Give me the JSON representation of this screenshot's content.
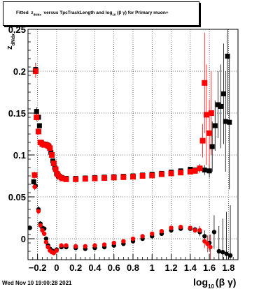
{
  "header": {
    "title_prefix": "Fitted",
    "title_z": "z",
    "title_z_sub": "dNdx",
    "title_mid": "versus TpcTrackLength and log",
    "title_log_sub": "10",
    "title_suffix": "(β γ) for Primary muon+"
  },
  "footer": {
    "datestamp": "Wed Nov 10 19:00:28 2021"
  },
  "axis_labels": {
    "x_main": "log",
    "x_sub": "10",
    "x_suffix": "(β γ)",
    "y_main": "z",
    "y_sub": "dNdx"
  },
  "colors": {
    "series_black": "#000000",
    "series_red": "#ff0000",
    "frame": "#000000"
  },
  "chart_data": {
    "type": "scatter",
    "title": "Fitted z dNdx versus TpcTrackLength and log10 (β γ) for Primary muon+",
    "xlabel": "log10 (β γ)",
    "ylabel": "z dNdx",
    "xlim": [
      -0.3,
      1.9
    ],
    "ylim": [
      -0.025,
      0.25
    ],
    "x_ticks": [
      -0.2,
      0,
      0.2,
      0.4,
      0.6,
      0.8,
      1,
      1.2,
      1.4,
      1.6,
      1.8
    ],
    "x_tick_labels": [
      "−0.2",
      "0",
      "0.2",
      "0.4",
      "0.6",
      "0.8",
      "1",
      "1.2",
      "1.4",
      "1.6",
      "1.8"
    ],
    "y_ticks": [
      0,
      0.05,
      0.1,
      0.15,
      0.2,
      0.25
    ],
    "y_tick_labels": [
      "0",
      "0.05",
      "0.1",
      "0.15",
      "0.2",
      "0.25"
    ],
    "grid": true,
    "legend": "none",
    "series": [
      {
        "color": "#000000",
        "role": "upper",
        "points": [
          [
            -0.24,
            0.068,
            0.004
          ],
          [
            -0.22,
            0.202,
            0.008
          ],
          [
            -0.21,
            0.152,
            0.005
          ],
          [
            -0.19,
            0.145,
            0.004
          ],
          [
            -0.18,
            0.135,
            0.003
          ],
          [
            -0.16,
            0.115,
            0.002
          ],
          [
            -0.14,
            0.113,
            0.002
          ],
          [
            -0.12,
            0.113,
            0.002
          ],
          [
            -0.1,
            0.112,
            0.002
          ],
          [
            -0.08,
            0.11,
            0.002
          ],
          [
            -0.06,
            0.103,
            0.002
          ],
          [
            -0.04,
            0.093,
            0.002
          ],
          [
            -0.02,
            0.085,
            0.002
          ],
          [
            0.0,
            0.078,
            0.002
          ],
          [
            0.02,
            0.075,
            0.002
          ],
          [
            0.05,
            0.073,
            0.001
          ],
          [
            0.1,
            0.072,
            0.001
          ],
          [
            0.2,
            0.072,
            0.001
          ],
          [
            0.3,
            0.0725,
            0.001
          ],
          [
            0.4,
            0.073,
            0.001
          ],
          [
            0.5,
            0.0735,
            0.001
          ],
          [
            0.6,
            0.074,
            0.001
          ],
          [
            0.7,
            0.0745,
            0.001
          ],
          [
            0.8,
            0.075,
            0.001
          ],
          [
            0.9,
            0.076,
            0.001
          ],
          [
            1.0,
            0.077,
            0.001
          ],
          [
            1.1,
            0.078,
            0.001
          ],
          [
            1.2,
            0.0795,
            0.001
          ],
          [
            1.3,
            0.081,
            0.001
          ],
          [
            1.4,
            0.083,
            0.002
          ],
          [
            1.45,
            0.082,
            0.003
          ],
          [
            1.5,
            0.084,
            0.005
          ],
          [
            1.55,
            0.082,
            0.006
          ],
          [
            1.6,
            0.081,
            0.008
          ],
          [
            1.63,
            0.11,
            0.03
          ],
          [
            1.66,
            0.135,
            0.03
          ],
          [
            1.69,
            0.16,
            0.04
          ],
          [
            1.72,
            0.158,
            0.05
          ],
          [
            1.75,
            0.173,
            0.06
          ],
          [
            1.77,
            0.14,
            0.06
          ],
          [
            1.79,
            0.218,
            0.07
          ],
          [
            1.81,
            0.139,
            0.08
          ]
        ]
      },
      {
        "color": "#ff0000",
        "role": "upper",
        "points": [
          [
            -0.23,
            0.076,
            0.004
          ],
          [
            -0.22,
            0.2,
            0.008
          ],
          [
            -0.21,
            0.145,
            0.005
          ],
          [
            -0.19,
            0.128,
            0.004
          ],
          [
            -0.17,
            0.115,
            0.003
          ],
          [
            -0.15,
            0.113,
            0.002
          ],
          [
            -0.13,
            0.112,
            0.002
          ],
          [
            -0.11,
            0.112,
            0.002
          ],
          [
            -0.09,
            0.111,
            0.002
          ],
          [
            -0.07,
            0.108,
            0.002
          ],
          [
            -0.05,
            0.1,
            0.002
          ],
          [
            -0.03,
            0.09,
            0.002
          ],
          [
            -0.01,
            0.083,
            0.002
          ],
          [
            0.01,
            0.077,
            0.002
          ],
          [
            0.03,
            0.074,
            0.001
          ],
          [
            0.06,
            0.072,
            0.001
          ],
          [
            0.1,
            0.071,
            0.001
          ],
          [
            0.2,
            0.071,
            0.001
          ],
          [
            0.3,
            0.0715,
            0.001
          ],
          [
            0.4,
            0.072,
            0.001
          ],
          [
            0.5,
            0.0725,
            0.001
          ],
          [
            0.6,
            0.073,
            0.001
          ],
          [
            0.7,
            0.0735,
            0.001
          ],
          [
            0.8,
            0.074,
            0.001
          ],
          [
            0.9,
            0.075,
            0.001
          ],
          [
            1.0,
            0.0755,
            0.001
          ],
          [
            1.1,
            0.077,
            0.001
          ],
          [
            1.2,
            0.078,
            0.001
          ],
          [
            1.3,
            0.079,
            0.001
          ],
          [
            1.4,
            0.08,
            0.002
          ],
          [
            1.45,
            0.081,
            0.003
          ],
          [
            1.5,
            0.084,
            0.004
          ],
          [
            1.53,
            0.117,
            0.02
          ],
          [
            1.55,
            0.186,
            0.06
          ],
          [
            1.57,
            0.148,
            0.06
          ],
          [
            1.6,
            0.126,
            0.04
          ],
          [
            1.62,
            0.15,
            0.05
          ]
        ]
      },
      {
        "color": "#000000",
        "role": "lower",
        "points": [
          [
            -0.28,
            0.013,
            0.003
          ],
          [
            -0.22,
            0.063,
            0.004
          ],
          [
            -0.19,
            0.035,
            0.004
          ],
          [
            -0.17,
            0.018,
            0.003
          ],
          [
            -0.15,
            0.013,
            0.003
          ],
          [
            -0.13,
            0.012,
            0.002
          ],
          [
            -0.11,
            0.0,
            0.002
          ],
          [
            -0.09,
            -0.008,
            0.002
          ],
          [
            -0.07,
            -0.012,
            0.002
          ],
          [
            -0.05,
            -0.014,
            0.002
          ],
          [
            -0.03,
            -0.015,
            0.002
          ],
          [
            0.0,
            -0.013,
            0.001
          ],
          [
            0.05,
            -0.01,
            0.001
          ],
          [
            0.1,
            -0.01,
            0.001
          ],
          [
            0.2,
            -0.011,
            0.001
          ],
          [
            0.3,
            -0.012,
            0.001
          ],
          [
            0.4,
            -0.011,
            0.001
          ],
          [
            0.5,
            -0.01,
            0.001
          ],
          [
            0.6,
            -0.008,
            0.001
          ],
          [
            0.7,
            -0.006,
            0.001
          ],
          [
            0.8,
            -0.003,
            0.001
          ],
          [
            0.9,
            0.0,
            0.001
          ],
          [
            1.0,
            0.003,
            0.001
          ],
          [
            1.1,
            0.006,
            0.001
          ],
          [
            1.2,
            0.01,
            0.001
          ],
          [
            1.3,
            0.012,
            0.001
          ],
          [
            1.4,
            0.012,
            0.002
          ],
          [
            1.45,
            0.011,
            0.003
          ],
          [
            1.5,
            0.008,
            0.005
          ],
          [
            1.55,
            0.003,
            0.007
          ],
          [
            1.6,
            -0.005,
            0.01
          ],
          [
            1.65,
            0.008,
            0.02
          ],
          [
            1.7,
            -0.015,
            0.03
          ],
          [
            1.74,
            -0.016,
            0.04
          ],
          [
            1.78,
            -0.018,
            0.05
          ],
          [
            1.82,
            -0.02,
            0.06
          ]
        ]
      },
      {
        "color": "#ff0000",
        "role": "lower",
        "points": [
          [
            -0.23,
            0.062,
            0.004
          ],
          [
            -0.19,
            0.033,
            0.004
          ],
          [
            -0.17,
            0.016,
            0.003
          ],
          [
            -0.15,
            0.01,
            0.003
          ],
          [
            -0.13,
            0.006,
            0.002
          ],
          [
            -0.11,
            -0.004,
            0.002
          ],
          [
            -0.09,
            -0.01,
            0.002
          ],
          [
            -0.07,
            -0.014,
            0.002
          ],
          [
            -0.05,
            -0.016,
            0.002
          ],
          [
            -0.03,
            -0.017,
            0.002
          ],
          [
            0.0,
            -0.014,
            0.001
          ],
          [
            0.05,
            -0.008,
            0.001
          ],
          [
            0.1,
            -0.008,
            0.001
          ],
          [
            0.2,
            -0.009,
            0.001
          ],
          [
            0.3,
            -0.009,
            0.001
          ],
          [
            0.4,
            -0.008,
            0.001
          ],
          [
            0.5,
            -0.007,
            0.001
          ],
          [
            0.6,
            -0.005,
            0.001
          ],
          [
            0.7,
            -0.003,
            0.001
          ],
          [
            0.8,
            0.0,
            0.001
          ],
          [
            0.9,
            0.003,
            0.001
          ],
          [
            1.0,
            0.006,
            0.001
          ],
          [
            1.1,
            0.009,
            0.001
          ],
          [
            1.2,
            0.013,
            0.001
          ],
          [
            1.3,
            0.014,
            0.001
          ],
          [
            1.4,
            0.013,
            0.002
          ],
          [
            1.45,
            0.01,
            0.003
          ],
          [
            1.5,
            0.01,
            0.005
          ],
          [
            1.55,
            -0.003,
            0.008
          ],
          [
            1.58,
            -0.006,
            0.01
          ],
          [
            1.61,
            -0.01,
            0.015
          ]
        ]
      }
    ]
  }
}
